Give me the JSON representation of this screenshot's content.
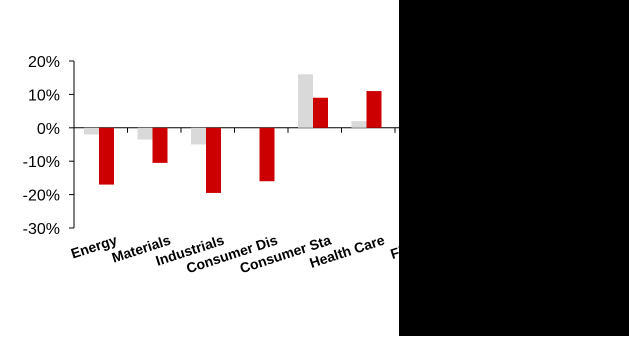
{
  "chart_data": {
    "type": "bar",
    "categories": [
      "Energy",
      "Materials",
      "Industrials",
      "Consumer Dis",
      "Consumer Sta",
      "Health Care",
      "Financi"
    ],
    "series": [
      {
        "values": [
          -2,
          -3.5,
          -5,
          0,
          16,
          2,
          0
        ]
      },
      {
        "values": [
          -17,
          -10.5,
          -19.5,
          -16,
          9,
          11,
          0
        ]
      }
    ],
    "ylim": [
      -30,
      20
    ],
    "yticks": [
      20,
      10,
      0,
      -10,
      -20,
      -30
    ],
    "ytick_labels": [
      "20%",
      "10%",
      "0%",
      "-10%",
      "-20%",
      "-30%"
    ],
    "colors": [
      "#d9d9d9",
      "#cc0000"
    ],
    "grid": false,
    "title": "",
    "xlabel": "",
    "ylabel": ""
  },
  "overlay": {
    "color": "#000000",
    "description": "black rectangle covering right portion of chart"
  }
}
